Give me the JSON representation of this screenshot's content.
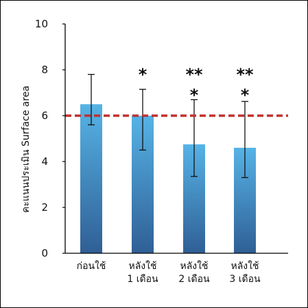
{
  "chart_data": {
    "type": "bar",
    "categories": [
      [
        "ก่อนใช้"
      ],
      [
        "หลังใช้",
        "1 เดือน"
      ],
      [
        "หลังใช้",
        "2 เดือน"
      ],
      [
        "หลังใช้",
        "3 เดือน"
      ]
    ],
    "values": [
      6.5,
      6.0,
      4.75,
      4.6
    ],
    "error_upper": [
      7.8,
      7.15,
      6.7,
      6.62
    ],
    "error_lower": [
      5.6,
      4.5,
      3.35,
      3.3
    ],
    "significance": [
      [],
      [
        "*"
      ],
      [
        "**",
        "*"
      ],
      [
        "**",
        "*"
      ]
    ],
    "reference_line": {
      "y": 6.0,
      "color": "#c0302e",
      "style": "dashed"
    },
    "title": "",
    "xlabel": "",
    "ylabel": "คะแนนประเมิน Surface area",
    "ylim": [
      0,
      10
    ],
    "yticks": [
      0,
      2,
      4,
      6,
      8,
      10
    ],
    "grid": false,
    "colors": {
      "bar_top": "#56b3e6",
      "bar_bottom": "#2f5f95",
      "axis": "#000000",
      "error_bar": "#111111"
    }
  }
}
